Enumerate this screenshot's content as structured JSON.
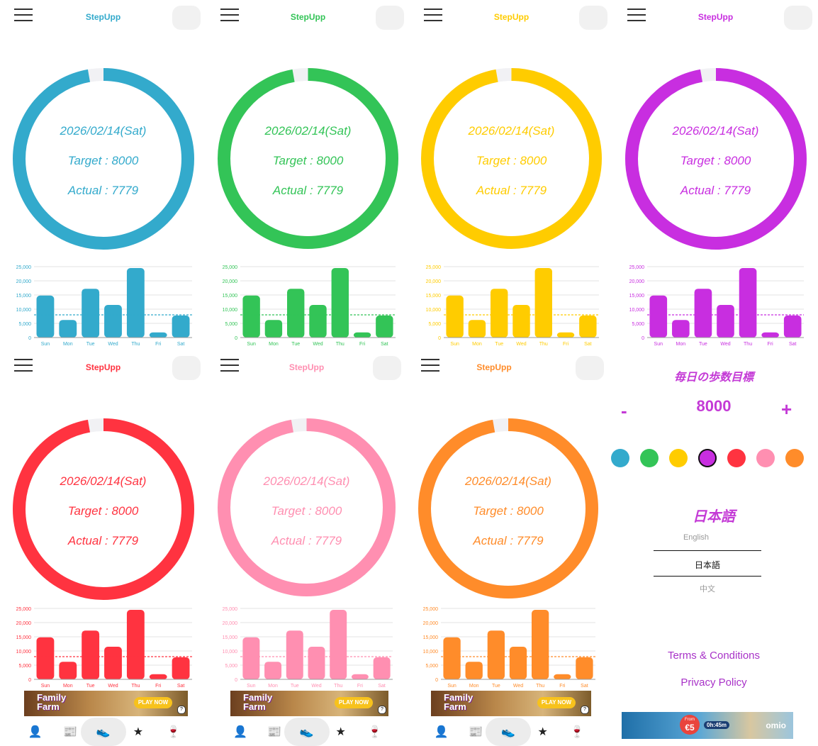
{
  "app": {
    "title": "StepUpp"
  },
  "day": {
    "date": "2026/02/14(Sat)",
    "target_text": "Target : 8000",
    "actual_text": "Actual : 7779",
    "target": 8000,
    "actual": 7779,
    "progress": 0.972
  },
  "themes": [
    {
      "name": "blue",
      "color": "#33aacc"
    },
    {
      "name": "green",
      "color": "#33c457"
    },
    {
      "name": "yellow",
      "color": "#ffcc00"
    },
    {
      "name": "purple",
      "color": "#c82ee0"
    },
    {
      "name": "red",
      "color": "#ff3340"
    },
    {
      "name": "pink",
      "color": "#ff8fb1"
    },
    {
      "name": "orange",
      "color": "#ff8c2a"
    }
  ],
  "chart_data": {
    "type": "bar",
    "categories": [
      "Sun",
      "Mon",
      "Tue",
      "Wed",
      "Thu",
      "Fri",
      "Sat"
    ],
    "values": [
      14800,
      6200,
      17200,
      11500,
      24500,
      1800,
      7779
    ],
    "yticks": [
      "25,000",
      "20,000",
      "15,000",
      "10,000",
      "5,000",
      "0"
    ],
    "ylim": [
      0,
      25000
    ],
    "target_line": 8000,
    "grid": true
  },
  "nav": {
    "items": [
      {
        "name": "profile-icon",
        "glyph": "👤"
      },
      {
        "name": "news-icon",
        "glyph": "📰"
      },
      {
        "name": "steps-icon",
        "glyph": "👟"
      },
      {
        "name": "favorites-icon",
        "glyph": "★"
      },
      {
        "name": "wine-icon",
        "glyph": "🍷"
      }
    ]
  },
  "ad": {
    "logo_line1": "Family",
    "logo_line2": "Farm",
    "cta": "PLAY NOW",
    "info": "?"
  },
  "settings": {
    "goal_title": "毎日の歩数目標",
    "goal_value": "8000",
    "minus": "-",
    "plus": "+",
    "language_title": "日本語",
    "languages": [
      "English",
      "日本語",
      "中文"
    ],
    "selected_color": "purple",
    "terms": "Terms & Conditions",
    "privacy": "Privacy Policy",
    "ad_price_from": "From",
    "ad_price": "€5",
    "ad_time": "0h:45m",
    "ad_brand": "omio"
  }
}
